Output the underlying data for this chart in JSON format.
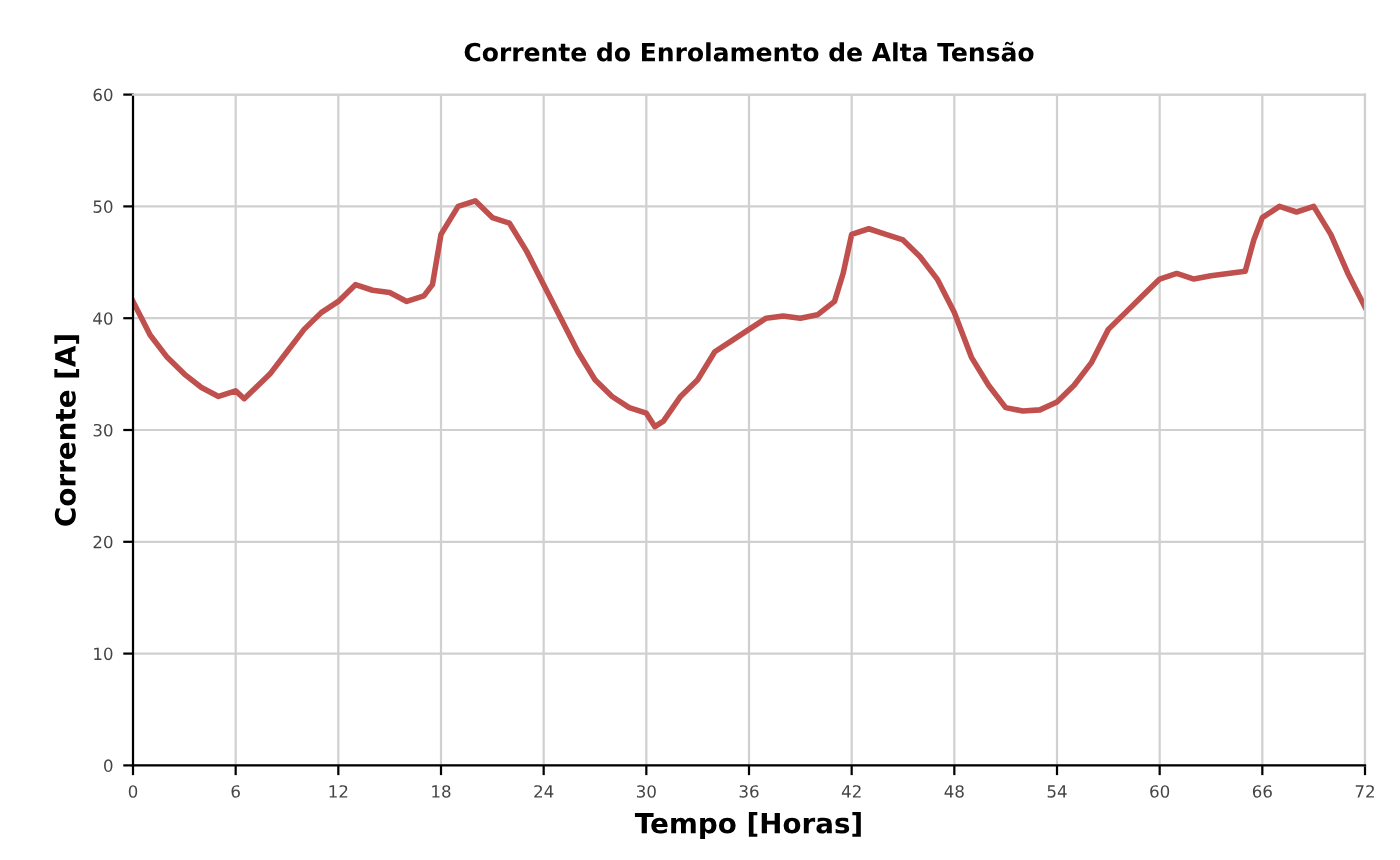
{
  "chart_data": {
    "type": "line",
    "title": "Corrente do Enrolamento de Alta Tensão",
    "xlabel": "Tempo [Horas]",
    "ylabel": "Corrente [A]",
    "x": [
      0,
      1,
      2,
      3,
      4,
      5,
      6,
      6.5,
      8,
      9,
      10,
      11,
      12,
      13,
      14,
      15,
      16,
      17,
      17.5,
      18,
      19,
      20,
      21,
      22,
      23,
      24,
      25,
      26,
      27,
      28,
      29,
      30,
      30.5,
      31,
      32,
      33,
      34,
      35,
      36,
      37,
      38,
      39,
      40,
      41,
      41.5,
      42,
      43,
      44,
      45,
      46,
      47,
      48,
      49,
      50,
      51,
      52,
      53,
      54,
      55,
      56,
      57,
      58,
      59,
      60,
      61,
      62,
      63,
      64,
      65,
      65.5,
      66,
      67,
      68,
      69,
      70,
      71,
      72
    ],
    "series": [
      {
        "color": "#c0504d",
        "values": [
          41.5,
          38.5,
          36.5,
          35,
          33.8,
          33,
          33.5,
          32.8,
          35,
          37,
          39,
          40.5,
          41.5,
          43,
          42.5,
          42.3,
          41.5,
          42,
          43,
          47.5,
          50,
          50.5,
          49,
          48.5,
          46,
          43,
          40,
          37,
          34.5,
          33,
          32,
          31.5,
          30.3,
          30.8,
          33,
          34.5,
          37,
          38,
          39,
          40,
          40.2,
          40,
          40.3,
          41.5,
          44,
          47.5,
          48,
          47.5,
          47,
          45.5,
          43.5,
          40.5,
          36.5,
          34,
          32,
          31.7,
          31.8,
          32.5,
          34,
          36,
          39,
          40.5,
          42,
          43.5,
          44,
          43.5,
          43.8,
          44,
          44.2,
          47,
          49,
          50,
          49.5,
          50,
          47.5,
          44,
          41
        ]
      }
    ],
    "xlim": [
      0,
      72
    ],
    "ylim": [
      0,
      60
    ],
    "xticks": [
      0,
      6,
      12,
      18,
      24,
      30,
      36,
      42,
      48,
      54,
      60,
      66,
      72
    ],
    "yticks": [
      0,
      10,
      20,
      30,
      40,
      50,
      60
    ],
    "grid": true,
    "marker": "none",
    "line_style": "solid"
  }
}
